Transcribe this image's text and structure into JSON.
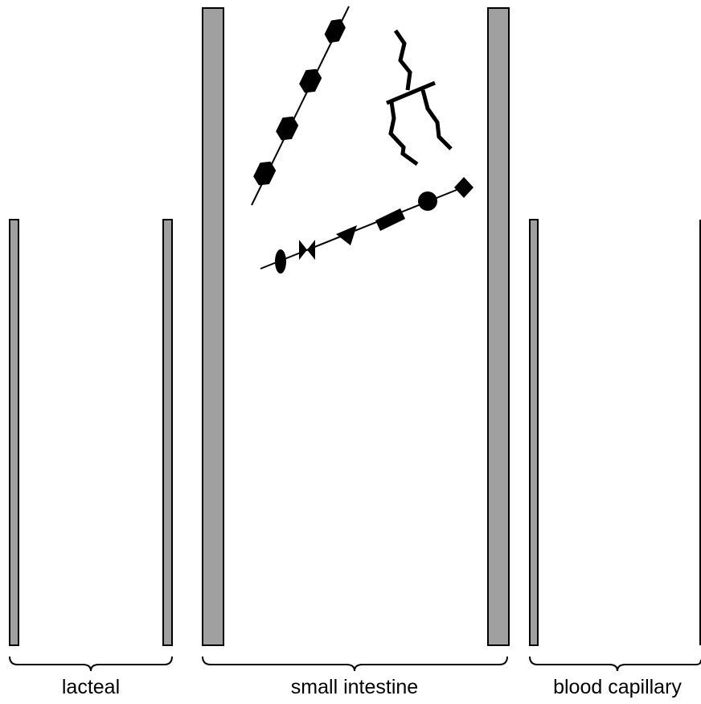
{
  "labels": {
    "lacteal": "lacteal",
    "small_intestine": "small intestine",
    "blood_capillary": "blood capillary"
  },
  "colors": {
    "wall_fill": "#a0a0a0",
    "outline": "#000000",
    "background": "#ffffff"
  },
  "molecules": [
    {
      "kind": "polysaccharide-chain",
      "units": 4,
      "unit_shape": "hexagon"
    },
    {
      "kind": "triglyceride",
      "chains": 3,
      "chain_shape": "zigzag"
    },
    {
      "kind": "polypeptide-chain",
      "units": 6,
      "unit_shapes": [
        "ellipse",
        "bowtie",
        "triangle",
        "rectangle",
        "circle",
        "diamond"
      ]
    }
  ]
}
